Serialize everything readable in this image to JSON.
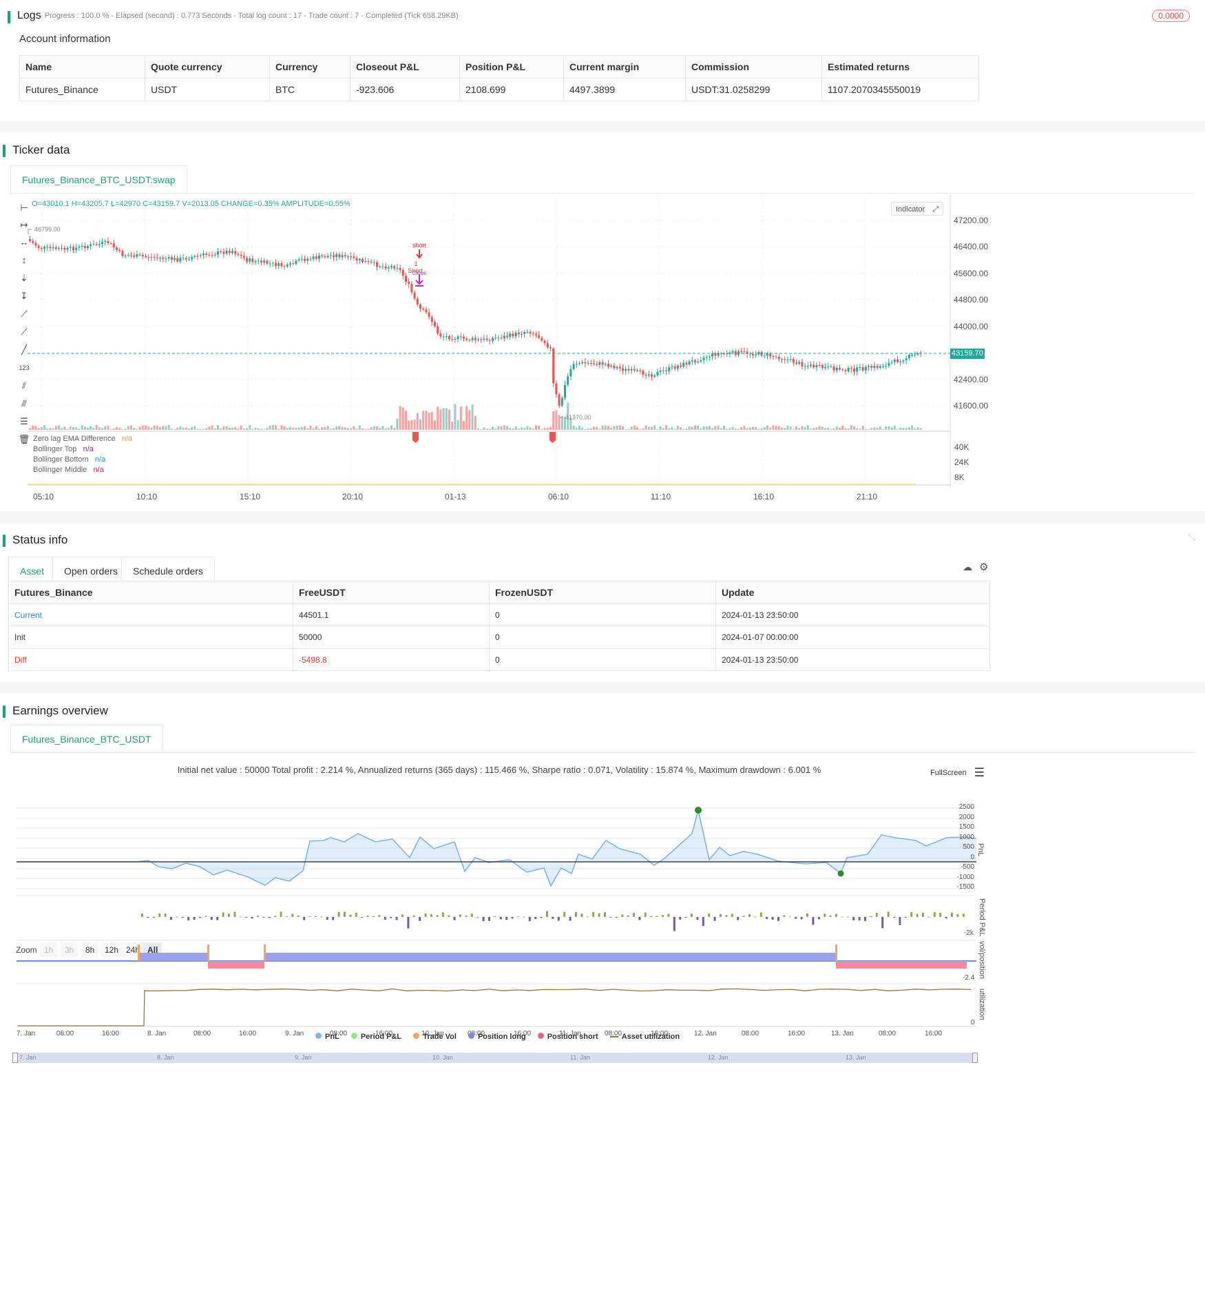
{
  "logs": {
    "title": "Logs",
    "status_line": "- Progress : 100.0 % - Elapsed (second) : 0.773  Seconds - Total log count : 17 - Trade count : 7 - Completed (Tick 658.29KB)",
    "badge": "0.0000"
  },
  "account": {
    "title": "Account information",
    "headers": [
      "Name",
      "Quote currency",
      "Currency",
      "Closeout P&L",
      "Position P&L",
      "Current margin",
      "Commission",
      "Estimated returns"
    ],
    "row": [
      "Futures_Binance",
      "USDT",
      "BTC",
      "-923.606",
      "2108.699",
      "4497.3899",
      "USDT:31.0258299",
      "1107.2070345550019"
    ]
  },
  "ticker": {
    "title": "Ticker data",
    "tab": "Futures_Binance_BTC_USDT:swap",
    "ohlc_line": "O=43010.1  H=43205.7  L=42970  C=43159.7  V=2013.05  CHANGE=0.35%  AMPLITUDE=0.55%",
    "indicator_btn": "Indicator",
    "price_labels": [
      "47200.00",
      "46400.00",
      "45600.00",
      "44800.00",
      "44000.00",
      "42400.00",
      "41600.00"
    ],
    "current_price": "43159.70",
    "high_mark": "46799.00",
    "low_mark": "41370.00",
    "vol_labels": [
      "40K",
      "24K",
      "8K"
    ],
    "time_labels": [
      "05:10",
      "10:10",
      "15:10",
      "20:10",
      "01-13",
      "06:10",
      "11:10",
      "16:10",
      "21:10"
    ],
    "signals": {
      "short1": "short",
      "short2": "1",
      "short3": "Short",
      "close": "Close"
    },
    "legend": [
      {
        "name": "Zero lag EMA Difference",
        "value": "n/a",
        "color": "#f0a030"
      },
      {
        "name": "Bollinger Top",
        "value": "n/a",
        "color": "#9c27b0"
      },
      {
        "name": "Bollinger Bottom",
        "value": "n/a",
        "color": "#2196f3"
      },
      {
        "name": "Bollinger Middle",
        "value": "n/a",
        "color": "#e91e63"
      }
    ],
    "colors": {
      "up": "#26a69a",
      "down": "#ef5350",
      "current": "#26a69a"
    }
  },
  "status": {
    "title": "Status info",
    "tabs": [
      "Asset",
      "Open orders",
      "Schedule orders"
    ],
    "headers": [
      "Futures_Binance",
      "FreeUSDT",
      "FrozenUSDT",
      "Update"
    ],
    "rows": [
      [
        "Current",
        "44501.1",
        "0",
        "2024-01-13 23:50:00"
      ],
      [
        "Init",
        "50000",
        "0",
        "2024-01-07 00:00:00"
      ],
      [
        "Diff",
        "-5498.8",
        "0",
        "2024-01-13 23:50:00"
      ]
    ]
  },
  "earnings": {
    "title": "Earnings overview",
    "tab": "Futures_Binance_BTC_USDT",
    "summary": "Initial net value : 50000  Total profit : 2.214 %, Annualized returns (365 days) : 115.466 %, Sharpe ratio : 0.071, Volatility : 15.874 %, Maximum drawdown : 6.001 %",
    "fullscreen": "FullScreen",
    "zoom_label": "Zoom",
    "zoom_buttons": [
      "1h",
      "3h",
      "8h",
      "12h",
      "24h",
      "All"
    ],
    "pnl_ticks": [
      "2500",
      "2000",
      "1500",
      "1000",
      "500",
      "0",
      "-500",
      "-1000",
      "-1500"
    ],
    "pnl_axis": "PnL",
    "period_axis": "Period P&L",
    "period_tick": "-2k",
    "pos_axis": "vol/position",
    "pos_tick": "-2.4",
    "util_axis": "utilization",
    "util_tick": "0",
    "x_labels": [
      "7. Jan",
      "08:00",
      "16:00",
      "8. Jan",
      "08:00",
      "16:00",
      "9. Jan",
      "08:00",
      "16:00",
      "10. Jan",
      "08:00",
      "16:00",
      "11. Jan",
      "08:00",
      "16:00",
      "12. Jan",
      "08:00",
      "16:00",
      "13. Jan",
      "08:00",
      "16:00"
    ],
    "nav_labels": [
      "7. Jan",
      "8. Jan",
      "9. Jan",
      "10. Jan",
      "11. Jan",
      "12. Jan",
      "13. Jan"
    ],
    "legend": [
      {
        "name": "PnL",
        "color": "#7cb5ec"
      },
      {
        "name": "Period P&L",
        "color": "#90ed7d"
      },
      {
        "name": "Trade Vol",
        "color": "#f7a35c"
      },
      {
        "name": "Position long",
        "color": "#8085e9"
      },
      {
        "name": "Position short",
        "color": "#f15c80"
      },
      {
        "name": "Asset utilization",
        "color": "#8d7a3c"
      }
    ]
  }
}
